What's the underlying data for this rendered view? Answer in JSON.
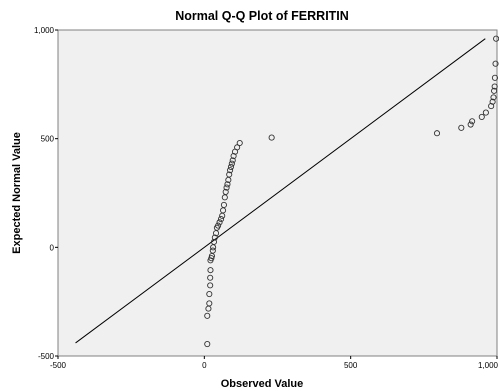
{
  "chart_data": {
    "type": "scatter",
    "title": "Normal Q-Q Plot of FERRITIN",
    "xlabel": "Observed Value",
    "ylabel": "Expected Normal Value",
    "xlim": [
      -500,
      1000
    ],
    "ylim": [
      -500,
      1000
    ],
    "x_ticks": [
      -500,
      0,
      500,
      1000
    ],
    "y_ticks": [
      -500,
      0,
      500,
      1000
    ],
    "x_tick_labels": [
      "-500",
      "0",
      "500",
      "1,000"
    ],
    "y_tick_labels": [
      "-500",
      "0",
      "500",
      "1,000"
    ],
    "grid": false,
    "legend": "none",
    "reference_line": {
      "x": [
        -440,
        960
      ],
      "y": [
        -440,
        960
      ]
    },
    "points": {
      "x": [
        10,
        10,
        14,
        17,
        17,
        20,
        20,
        21,
        21,
        24,
        26,
        29,
        30,
        33,
        36,
        40,
        43,
        47,
        52,
        57,
        61,
        64,
        67,
        70,
        73,
        76,
        79,
        82,
        85,
        88,
        91,
        94,
        97,
        100,
        105,
        112,
        121,
        230,
        795,
        878,
        910,
        915,
        948,
        962,
        980,
        985,
        988,
        990,
        992,
        993,
        995,
        997
      ],
      "y": [
        -445,
        -315,
        -282,
        -258,
        -215,
        -175,
        -140,
        -105,
        -60,
        -50,
        -40,
        -15,
        0,
        25,
        45,
        65,
        90,
        100,
        115,
        130,
        145,
        170,
        195,
        230,
        255,
        275,
        290,
        310,
        335,
        355,
        370,
        385,
        400,
        420,
        440,
        460,
        480,
        505,
        525,
        550,
        565,
        580,
        600,
        620,
        650,
        670,
        690,
        720,
        740,
        780,
        845,
        960
      ]
    }
  },
  "colors": {
    "plot_background": "#f0f0f0",
    "frame": "#808080",
    "point_stroke": "#333333",
    "reference_line": "#000000"
  }
}
